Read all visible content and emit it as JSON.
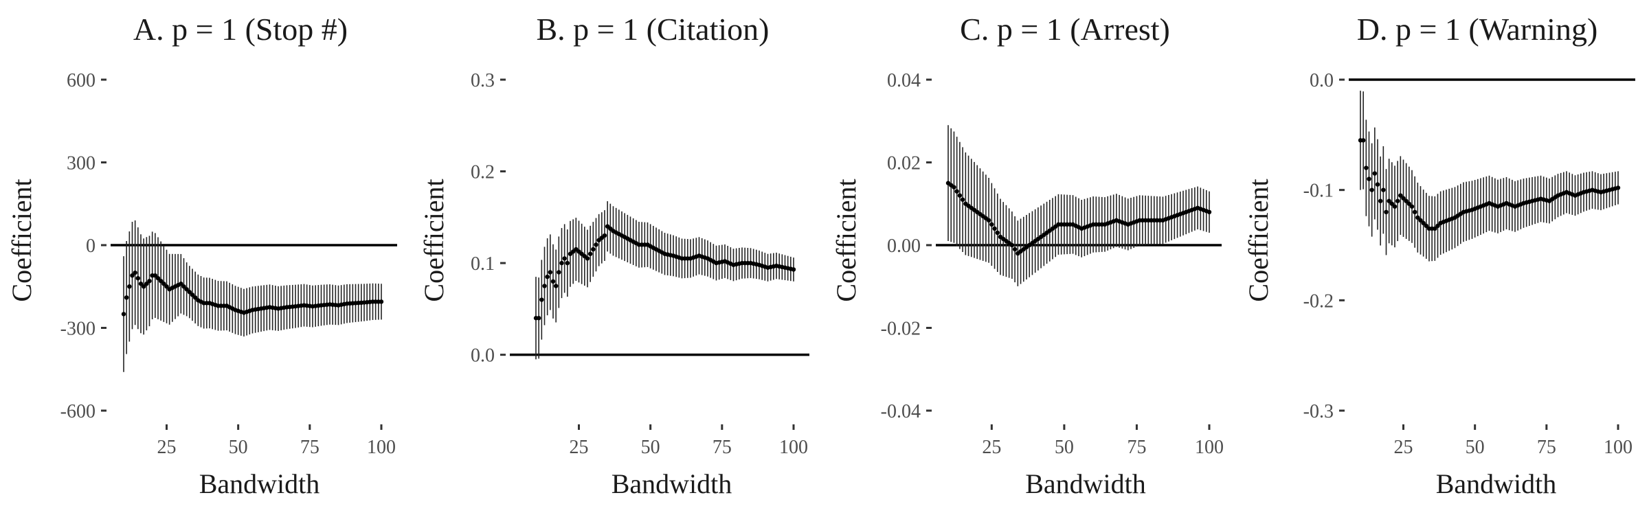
{
  "chart_data": [
    {
      "type": "scatter",
      "title": "A. p = 1 (Stop #)",
      "xlabel": "Bandwidth",
      "ylabel": "Coefficient",
      "xlim": [
        10,
        100
      ],
      "ylim": [
        -600,
        600
      ],
      "xticks": [
        25,
        50,
        75,
        100
      ],
      "yticks": [
        -600,
        -300,
        0,
        300,
        600
      ],
      "ytick_labels": [
        "-600",
        "-300",
        "0",
        "300",
        "600"
      ],
      "reference_line": 0,
      "grid": false,
      "anchors": [
        [
          10,
          -250
        ],
        [
          11,
          -190
        ],
        [
          12,
          -150
        ],
        [
          13,
          -110
        ],
        [
          14,
          -100
        ],
        [
          15,
          -120
        ],
        [
          16,
          -140
        ],
        [
          17,
          -150
        ],
        [
          18,
          -140
        ],
        [
          19,
          -130
        ],
        [
          20,
          -110
        ],
        [
          21,
          -110
        ],
        [
          22,
          -120
        ],
        [
          24,
          -140
        ],
        [
          26,
          -160
        ],
        [
          28,
          -150
        ],
        [
          30,
          -140
        ],
        [
          32,
          -160
        ],
        [
          34,
          -180
        ],
        [
          36,
          -200
        ],
        [
          38,
          -210
        ],
        [
          40,
          -210
        ],
        [
          43,
          -220
        ],
        [
          46,
          -220
        ],
        [
          49,
          -235
        ],
        [
          52,
          -245
        ],
        [
          55,
          -235
        ],
        [
          58,
          -230
        ],
        [
          61,
          -225
        ],
        [
          64,
          -230
        ],
        [
          67,
          -225
        ],
        [
          70,
          -222
        ],
        [
          73,
          -218
        ],
        [
          76,
          -222
        ],
        [
          79,
          -218
        ],
        [
          82,
          -215
        ],
        [
          85,
          -218
        ],
        [
          88,
          -212
        ],
        [
          91,
          -210
        ],
        [
          94,
          -208
        ],
        [
          97,
          -205
        ],
        [
          100,
          -205
        ]
      ],
      "ci_half_width": {
        "start": 210,
        "mid": 95,
        "end": 65
      }
    },
    {
      "type": "scatter",
      "title": "B. p = 1 (Citation)",
      "xlabel": "Bandwidth",
      "ylabel": "Coefficient",
      "xlim": [
        10,
        100
      ],
      "ylim": [
        -0.01,
        0.3
      ],
      "xticks": [
        25,
        50,
        75,
        100
      ],
      "yticks": [
        0.0,
        0.1,
        0.2,
        0.3
      ],
      "ytick_labels": [
        "0.0",
        "0.1",
        "0.2",
        "0.3"
      ],
      "reference_line": 0,
      "grid": false,
      "anchors": [
        [
          10,
          0.04
        ],
        [
          11,
          0.04
        ],
        [
          12,
          0.06
        ],
        [
          13,
          0.075
        ],
        [
          14,
          0.085
        ],
        [
          15,
          0.09
        ],
        [
          16,
          0.08
        ],
        [
          17,
          0.075
        ],
        [
          18,
          0.09
        ],
        [
          19,
          0.1
        ],
        [
          20,
          0.105
        ],
        [
          21,
          0.1
        ],
        [
          22,
          0.11
        ],
        [
          24,
          0.115
        ],
        [
          26,
          0.11
        ],
        [
          28,
          0.105
        ],
        [
          30,
          0.115
        ],
        [
          32,
          0.125
        ],
        [
          34,
          0.13
        ],
        [
          35,
          0.14
        ],
        [
          37,
          0.135
        ],
        [
          40,
          0.13
        ],
        [
          43,
          0.125
        ],
        [
          46,
          0.12
        ],
        [
          49,
          0.12
        ],
        [
          52,
          0.115
        ],
        [
          55,
          0.11
        ],
        [
          58,
          0.108
        ],
        [
          61,
          0.105
        ],
        [
          64,
          0.105
        ],
        [
          67,
          0.108
        ],
        [
          70,
          0.105
        ],
        [
          73,
          0.1
        ],
        [
          76,
          0.102
        ],
        [
          79,
          0.098
        ],
        [
          82,
          0.1
        ],
        [
          85,
          0.1
        ],
        [
          88,
          0.098
        ],
        [
          91,
          0.095
        ],
        [
          94,
          0.097
        ],
        [
          97,
          0.095
        ],
        [
          100,
          0.093
        ]
      ],
      "ci_half_width": {
        "start": 0.045,
        "mid": 0.028,
        "end": 0.013
      }
    },
    {
      "type": "scatter",
      "title": "C. p = 1 (Arrest)",
      "xlabel": "Bandwidth",
      "ylabel": "Coefficient",
      "xlim": [
        10,
        100
      ],
      "ylim": [
        -0.04,
        0.04
      ],
      "xticks": [
        25,
        50,
        75,
        100
      ],
      "yticks": [
        -0.04,
        -0.02,
        0.0,
        0.02,
        0.04
      ],
      "ytick_labels": [
        "-0.04",
        "-0.02",
        "0.00",
        "0.02",
        "0.04"
      ],
      "reference_line": 0,
      "grid": false,
      "anchors": [
        [
          10,
          0.015
        ],
        [
          12,
          0.014
        ],
        [
          14,
          0.012
        ],
        [
          16,
          0.01
        ],
        [
          18,
          0.009
        ],
        [
          20,
          0.008
        ],
        [
          22,
          0.007
        ],
        [
          24,
          0.006
        ],
        [
          26,
          0.004
        ],
        [
          28,
          0.002
        ],
        [
          30,
          0.001
        ],
        [
          32,
          0.0
        ],
        [
          34,
          -0.002
        ],
        [
          36,
          -0.001
        ],
        [
          38,
          0.0
        ],
        [
          40,
          0.001
        ],
        [
          42,
          0.002
        ],
        [
          44,
          0.003
        ],
        [
          46,
          0.004
        ],
        [
          48,
          0.005
        ],
        [
          50,
          0.005
        ],
        [
          53,
          0.005
        ],
        [
          56,
          0.004
        ],
        [
          60,
          0.005
        ],
        [
          64,
          0.005
        ],
        [
          68,
          0.006
        ],
        [
          72,
          0.005
        ],
        [
          76,
          0.006
        ],
        [
          80,
          0.006
        ],
        [
          84,
          0.006
        ],
        [
          88,
          0.007
        ],
        [
          92,
          0.008
        ],
        [
          96,
          0.009
        ],
        [
          100,
          0.008
        ]
      ],
      "ci_half_width": {
        "start": 0.014,
        "mid": 0.008,
        "end": 0.005
      }
    },
    {
      "type": "scatter",
      "title": "D. p = 1 (Warning)",
      "xlabel": "Bandwidth",
      "ylabel": "Coefficient",
      "xlim": [
        10,
        100
      ],
      "ylim": [
        -0.3,
        0.0
      ],
      "xticks": [
        25,
        50,
        75,
        100
      ],
      "yticks": [
        -0.3,
        -0.2,
        -0.1,
        0.0
      ],
      "ytick_labels": [
        "-0.3",
        "-0.2",
        "-0.1",
        "0.0"
      ],
      "reference_line": 0,
      "grid": false,
      "anchors": [
        [
          10,
          -0.055
        ],
        [
          11,
          -0.055
        ],
        [
          12,
          -0.08
        ],
        [
          13,
          -0.09
        ],
        [
          14,
          -0.1
        ],
        [
          15,
          -0.085
        ],
        [
          16,
          -0.095
        ],
        [
          17,
          -0.11
        ],
        [
          18,
          -0.1
        ],
        [
          19,
          -0.12
        ],
        [
          20,
          -0.11
        ],
        [
          22,
          -0.115
        ],
        [
          24,
          -0.105
        ],
        [
          26,
          -0.11
        ],
        [
          28,
          -0.115
        ],
        [
          30,
          -0.125
        ],
        [
          32,
          -0.13
        ],
        [
          34,
          -0.135
        ],
        [
          36,
          -0.135
        ],
        [
          38,
          -0.13
        ],
        [
          40,
          -0.128
        ],
        [
          43,
          -0.125
        ],
        [
          46,
          -0.12
        ],
        [
          49,
          -0.118
        ],
        [
          52,
          -0.115
        ],
        [
          55,
          -0.112
        ],
        [
          58,
          -0.115
        ],
        [
          61,
          -0.112
        ],
        [
          64,
          -0.115
        ],
        [
          67,
          -0.112
        ],
        [
          70,
          -0.11
        ],
        [
          73,
          -0.108
        ],
        [
          76,
          -0.11
        ],
        [
          79,
          -0.105
        ],
        [
          82,
          -0.102
        ],
        [
          85,
          -0.105
        ],
        [
          88,
          -0.102
        ],
        [
          91,
          -0.1
        ],
        [
          94,
          -0.102
        ],
        [
          97,
          -0.1
        ],
        [
          100,
          -0.098
        ]
      ],
      "ci_half_width": {
        "start": 0.045,
        "mid": 0.03,
        "end": 0.015
      }
    }
  ]
}
